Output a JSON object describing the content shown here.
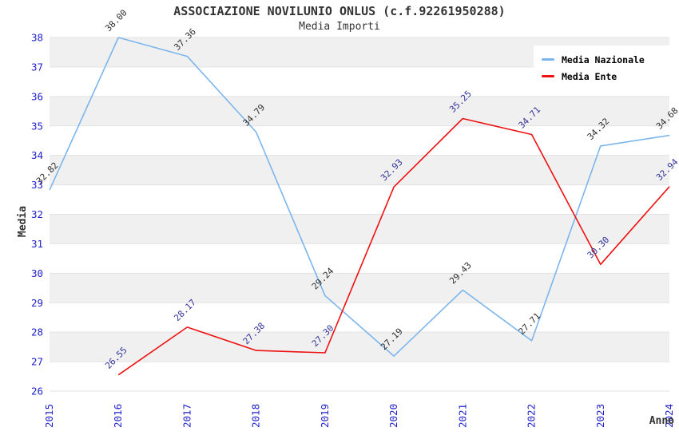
{
  "header": {
    "title": "ASSOCIAZIONE NOVILUNIO ONLUS (c.f.92261950288)",
    "subtitle": "Media Importi"
  },
  "axes": {
    "y_title": "Media",
    "x_title": "Anno",
    "y_ticks": [
      26,
      27,
      28,
      29,
      30,
      31,
      32,
      33,
      34,
      35,
      36,
      37,
      38
    ],
    "x_ticks": [
      "2015",
      "2016",
      "2017",
      "2018",
      "2019",
      "2020",
      "2021",
      "2022",
      "2023",
      "2024"
    ]
  },
  "legend": {
    "position": "top-right",
    "items": [
      {
        "label": "Media Nazionale",
        "color": "#7cb5ec"
      },
      {
        "label": "Media Ente",
        "color": "#ee1111"
      }
    ]
  },
  "colors": {
    "tick_label": "#2222cc",
    "gridline": "#e2e2e2",
    "band": "#f0f0f0",
    "axis_title": "#333333"
  },
  "chart_data": {
    "type": "line",
    "title": "ASSOCIAZIONE NOVILUNIO ONLUS (c.f.92261950288)",
    "subtitle": "Media Importi",
    "xlabel": "Anno",
    "ylabel": "Media",
    "x": [
      2015,
      2016,
      2017,
      2018,
      2019,
      2020,
      2021,
      2022,
      2023,
      2024
    ],
    "ylim": [
      26,
      38
    ],
    "grid": true,
    "legend_position": "top-right",
    "band_pairs": [
      [
        27,
        28
      ],
      [
        29,
        30
      ],
      [
        31,
        32
      ],
      [
        33,
        34
      ],
      [
        35,
        36
      ],
      [
        37,
        38
      ]
    ],
    "series": [
      {
        "name": "Media Nazionale",
        "color": "#7cb5ec",
        "label_color": "#303030",
        "values": [
          32.82,
          38.0,
          37.36,
          34.79,
          29.24,
          27.19,
          29.43,
          27.71,
          34.32,
          34.68
        ]
      },
      {
        "name": "Media Ente",
        "color": "#ee1111",
        "label_color": "#333399",
        "values": [
          null,
          26.55,
          28.17,
          27.38,
          27.3,
          32.93,
          35.25,
          34.71,
          30.3,
          32.94
        ]
      }
    ]
  }
}
